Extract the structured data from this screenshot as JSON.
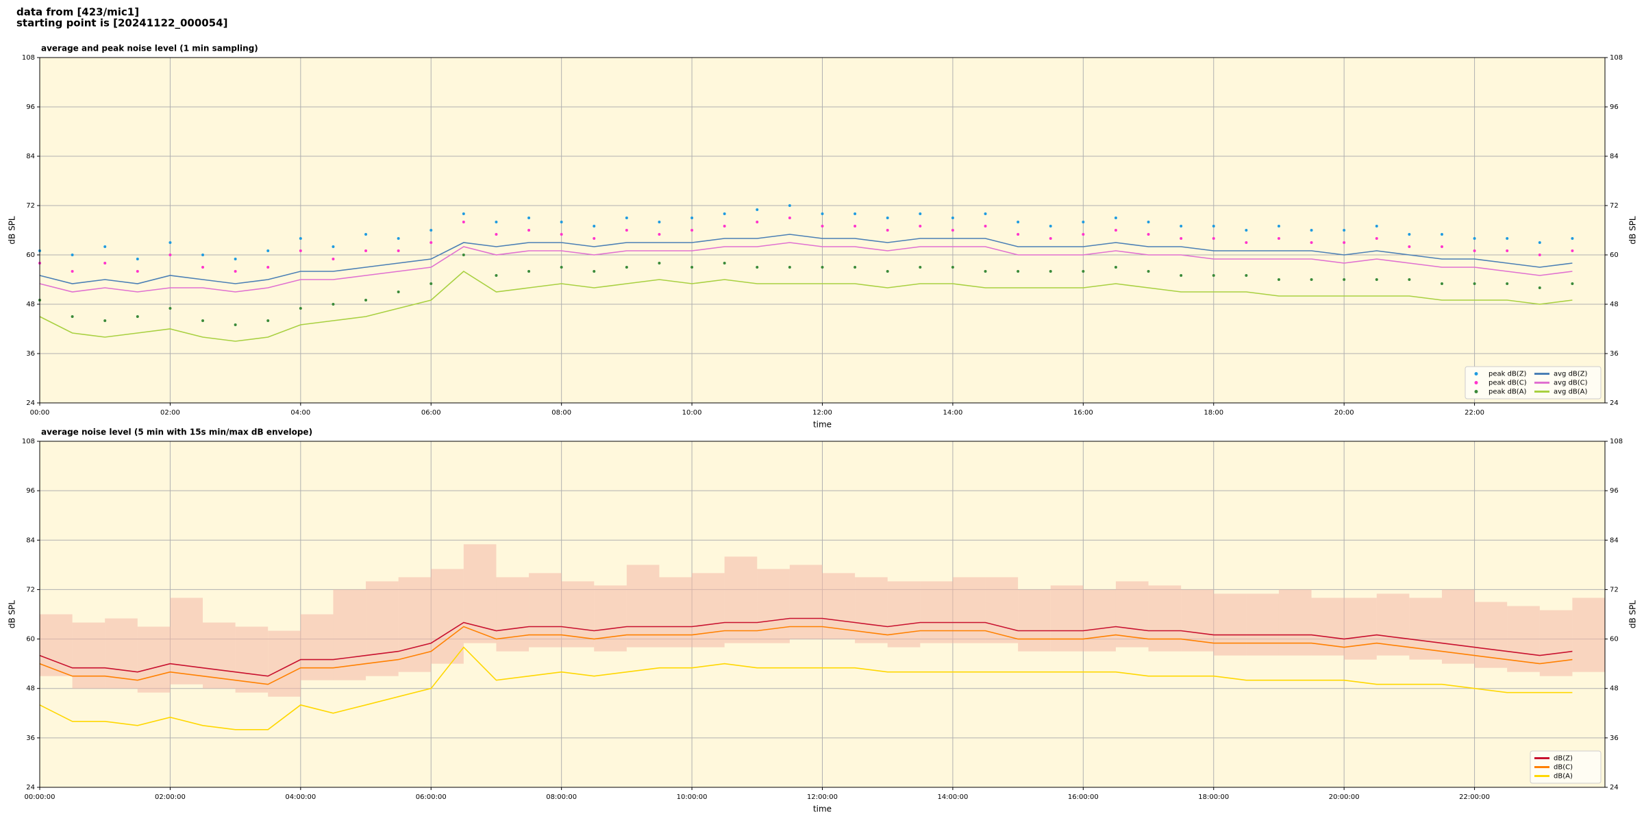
{
  "header": {
    "line1": "data from [423/mic1]",
    "line2": "starting point is [20241122_000054]"
  },
  "chart_data": [
    {
      "type": "line",
      "title": "average and peak noise level (1 min sampling)",
      "xlabel": "time",
      "ylabel": "dB SPL",
      "xlim": [
        0,
        24
      ],
      "ylim": [
        24,
        108
      ],
      "yticks": [
        24,
        36,
        48,
        60,
        72,
        84,
        96,
        108
      ],
      "xticks": [
        {
          "value": 0,
          "label": "00:00"
        },
        {
          "value": 2,
          "label": "02:00"
        },
        {
          "value": 4,
          "label": "04:00"
        },
        {
          "value": 6,
          "label": "06:00"
        },
        {
          "value": 8,
          "label": "08:00"
        },
        {
          "value": 10,
          "label": "10:00"
        },
        {
          "value": 12,
          "label": "12:00"
        },
        {
          "value": 14,
          "label": "14:00"
        },
        {
          "value": 16,
          "label": "16:00"
        },
        {
          "value": 18,
          "label": "18:00"
        },
        {
          "value": 20,
          "label": "20:00"
        },
        {
          "value": 22,
          "label": "22:00"
        }
      ],
      "grid": true,
      "background": "#fff8dc",
      "legend": "lower right",
      "legend_columns": 2,
      "x": [
        0,
        0.5,
        1,
        1.5,
        2,
        2.5,
        3,
        3.5,
        4,
        4.5,
        5,
        5.5,
        6,
        6.5,
        7,
        7.5,
        8,
        8.5,
        9,
        9.5,
        10,
        10.5,
        11,
        11.5,
        12,
        12.5,
        13,
        13.5,
        14,
        14.5,
        15,
        15.5,
        16,
        16.5,
        17,
        17.5,
        18,
        18.5,
        19,
        19.5,
        20,
        20.5,
        21,
        21.5,
        22,
        22.5,
        23,
        23.5
      ],
      "series": [
        {
          "name": "peak dB(Z)",
          "style": "scatter",
          "color": "#1f9be0",
          "values": [
            61,
            60,
            62,
            59,
            63,
            60,
            59,
            61,
            64,
            62,
            65,
            64,
            66,
            70,
            68,
            69,
            68,
            67,
            69,
            68,
            69,
            70,
            71,
            72,
            70,
            70,
            69,
            70,
            69,
            70,
            68,
            67,
            68,
            69,
            68,
            67,
            67,
            66,
            67,
            66,
            66,
            67,
            65,
            65,
            64,
            64,
            63,
            64
          ]
        },
        {
          "name": "peak dB(C)",
          "style": "scatter",
          "color": "#ff33cc",
          "values": [
            58,
            56,
            58,
            56,
            60,
            57,
            56,
            57,
            61,
            59,
            61,
            61,
            63,
            68,
            65,
            66,
            65,
            64,
            66,
            65,
            66,
            67,
            68,
            69,
            67,
            67,
            66,
            67,
            66,
            67,
            65,
            64,
            65,
            66,
            65,
            64,
            64,
            63,
            64,
            63,
            63,
            64,
            62,
            62,
            61,
            61,
            60,
            61
          ]
        },
        {
          "name": "peak dB(A)",
          "style": "scatter",
          "color": "#3a8a3a",
          "values": [
            49,
            45,
            44,
            45,
            47,
            44,
            43,
            44,
            47,
            48,
            49,
            51,
            53,
            60,
            55,
            56,
            57,
            56,
            57,
            58,
            57,
            58,
            57,
            57,
            57,
            57,
            56,
            57,
            57,
            56,
            56,
            56,
            56,
            57,
            56,
            55,
            55,
            55,
            54,
            54,
            54,
            54,
            54,
            53,
            53,
            53,
            52,
            53
          ]
        },
        {
          "name": "avg dB(Z)",
          "style": "line",
          "color": "#4a7fb5",
          "values": [
            55,
            53,
            54,
            53,
            55,
            54,
            53,
            54,
            56,
            56,
            57,
            58,
            59,
            63,
            62,
            63,
            63,
            62,
            63,
            63,
            63,
            64,
            64,
            65,
            64,
            64,
            63,
            64,
            64,
            64,
            62,
            62,
            62,
            63,
            62,
            62,
            61,
            61,
            61,
            61,
            60,
            61,
            60,
            59,
            59,
            58,
            57,
            58
          ]
        },
        {
          "name": "avg dB(C)",
          "style": "line",
          "color": "#e070d0",
          "values": [
            53,
            51,
            52,
            51,
            52,
            52,
            51,
            52,
            54,
            54,
            55,
            56,
            57,
            62,
            60,
            61,
            61,
            60,
            61,
            61,
            61,
            62,
            62,
            63,
            62,
            62,
            61,
            62,
            62,
            62,
            60,
            60,
            60,
            61,
            60,
            60,
            59,
            59,
            59,
            59,
            58,
            59,
            58,
            57,
            57,
            56,
            55,
            56
          ]
        },
        {
          "name": "avg dB(A)",
          "style": "line",
          "color": "#a8d040",
          "values": [
            45,
            41,
            40,
            41,
            42,
            40,
            39,
            40,
            43,
            44,
            45,
            47,
            49,
            56,
            51,
            52,
            53,
            52,
            53,
            54,
            53,
            54,
            53,
            53,
            53,
            53,
            52,
            53,
            53,
            52,
            52,
            52,
            52,
            53,
            52,
            51,
            51,
            51,
            50,
            50,
            50,
            50,
            50,
            49,
            49,
            49,
            48,
            49
          ]
        }
      ]
    },
    {
      "type": "line",
      "title": "average noise level (5 min with 15s min/max dB envelope)",
      "xlabel": "time",
      "ylabel": "dB SPL",
      "xlim": [
        0,
        24
      ],
      "ylim": [
        24,
        108
      ],
      "yticks": [
        24,
        36,
        48,
        60,
        72,
        84,
        96,
        108
      ],
      "xticks": [
        {
          "value": 0,
          "label": "00:00:00"
        },
        {
          "value": 2,
          "label": "02:00:00"
        },
        {
          "value": 4,
          "label": "04:00:00"
        },
        {
          "value": 6,
          "label": "06:00:00"
        },
        {
          "value": 8,
          "label": "08:00:00"
        },
        {
          "value": 10,
          "label": "10:00:00"
        },
        {
          "value": 12,
          "label": "12:00:00"
        },
        {
          "value": 14,
          "label": "14:00:00"
        },
        {
          "value": 16,
          "label": "16:00:00"
        },
        {
          "value": 18,
          "label": "18:00:00"
        },
        {
          "value": 20,
          "label": "20:00:00"
        },
        {
          "value": 22,
          "label": "22:00:00"
        }
      ],
      "grid": true,
      "background": "#fff8dc",
      "legend": "lower right",
      "legend_columns": 1,
      "x": [
        0,
        0.5,
        1,
        1.5,
        2,
        2.5,
        3,
        3.5,
        4,
        4.5,
        5,
        5.5,
        6,
        6.5,
        7,
        7.5,
        8,
        8.5,
        9,
        9.5,
        10,
        10.5,
        11,
        11.5,
        12,
        12.5,
        13,
        13.5,
        14,
        14.5,
        15,
        15.5,
        16,
        16.5,
        17,
        17.5,
        18,
        18.5,
        19,
        19.5,
        20,
        20.5,
        21,
        21.5,
        22,
        22.5,
        23,
        23.5
      ],
      "envelope": {
        "color": "#f4b8a8",
        "min": [
          51,
          48,
          48,
          47,
          49,
          48,
          47,
          46,
          50,
          50,
          51,
          52,
          54,
          59,
          57,
          58,
          58,
          57,
          58,
          58,
          58,
          59,
          59,
          60,
          60,
          59,
          58,
          59,
          59,
          59,
          57,
          57,
          57,
          58,
          57,
          57,
          56,
          56,
          56,
          56,
          55,
          56,
          55,
          54,
          53,
          52,
          51,
          52
        ],
        "max": [
          66,
          64,
          65,
          63,
          70,
          64,
          63,
          62,
          66,
          72,
          74,
          75,
          77,
          83,
          75,
          76,
          74,
          73,
          78,
          75,
          76,
          80,
          77,
          78,
          76,
          75,
          74,
          74,
          75,
          75,
          72,
          73,
          72,
          74,
          73,
          72,
          71,
          71,
          72,
          70,
          70,
          71,
          70,
          72,
          69,
          68,
          67,
          70
        ]
      },
      "series": [
        {
          "name": "dB(Z)",
          "style": "line",
          "color": "#c8102e",
          "values": [
            56,
            53,
            53,
            52,
            54,
            53,
            52,
            51,
            55,
            55,
            56,
            57,
            59,
            64,
            62,
            63,
            63,
            62,
            63,
            63,
            63,
            64,
            64,
            65,
            65,
            64,
            63,
            64,
            64,
            64,
            62,
            62,
            62,
            63,
            62,
            62,
            61,
            61,
            61,
            61,
            60,
            61,
            60,
            59,
            58,
            57,
            56,
            57
          ]
        },
        {
          "name": "dB(C)",
          "style": "line",
          "color": "#ff8000",
          "values": [
            54,
            51,
            51,
            50,
            52,
            51,
            50,
            49,
            53,
            53,
            54,
            55,
            57,
            63,
            60,
            61,
            61,
            60,
            61,
            61,
            61,
            62,
            62,
            63,
            63,
            62,
            61,
            62,
            62,
            62,
            60,
            60,
            60,
            61,
            60,
            60,
            59,
            59,
            59,
            59,
            58,
            59,
            58,
            57,
            56,
            55,
            54,
            55
          ]
        },
        {
          "name": "dB(A)",
          "style": "line",
          "color": "#ffd700",
          "values": [
            44,
            40,
            40,
            39,
            41,
            39,
            38,
            38,
            44,
            42,
            44,
            46,
            48,
            58,
            50,
            51,
            52,
            51,
            52,
            53,
            53,
            54,
            53,
            53,
            53,
            53,
            52,
            52,
            52,
            52,
            52,
            52,
            52,
            52,
            51,
            51,
            51,
            50,
            50,
            50,
            50,
            49,
            49,
            49,
            48,
            47,
            47,
            47
          ]
        }
      ]
    }
  ]
}
